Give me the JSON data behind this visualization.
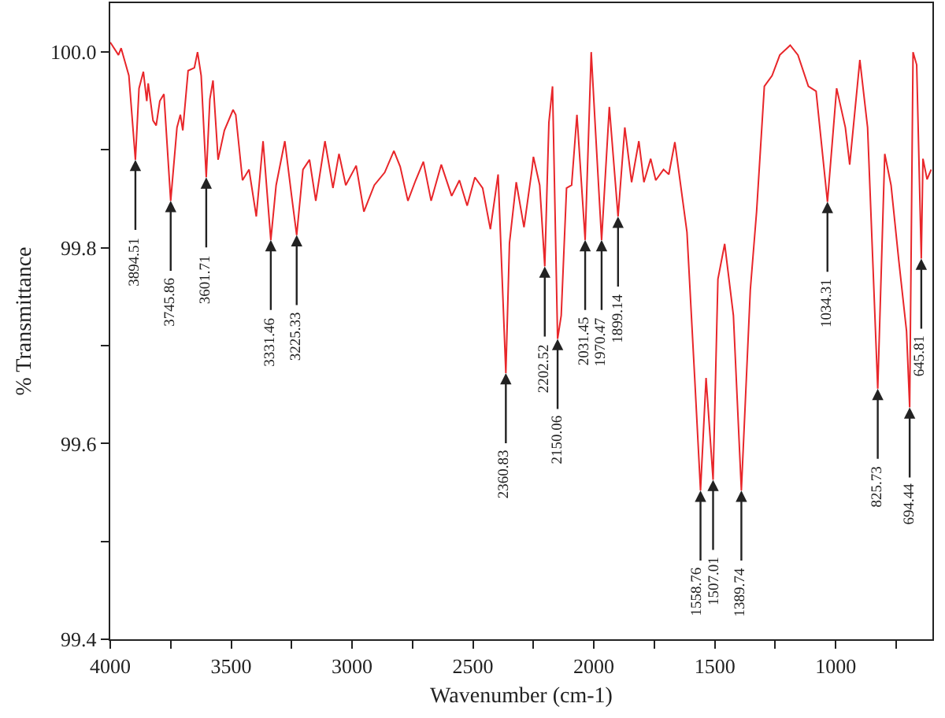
{
  "chart_data": {
    "type": "line",
    "xlabel": "Wavenumber (cm-1)",
    "ylabel": "% Transmittance",
    "xlim": [
      4000,
      600
    ],
    "ylim": [
      99.4,
      100.05
    ],
    "xticks": [
      4000,
      {
        "value": 3750,
        "label": null
      },
      3500,
      {
        "value": 3250,
        "label": null
      },
      3000,
      {
        "value": 2750,
        "label": null
      },
      2500,
      {
        "value": 2250,
        "label": null
      },
      2000,
      {
        "value": 1750,
        "label": null
      },
      1500,
      {
        "value": 1250,
        "label": null
      },
      1000,
      {
        "value": 750,
        "label": null
      }
    ],
    "yticks": [
      99.4,
      {
        "value": 99.5,
        "label": null
      },
      99.6,
      {
        "value": 99.7,
        "label": null
      },
      99.8,
      {
        "value": 99.9,
        "label": null
      },
      {
        "value": 100.0,
        "label": "100.0"
      }
    ],
    "marker": "none",
    "line_style": "solid",
    "series": [
      {
        "color": "#e8262a",
        "x": [
          4000,
          3966,
          3955,
          3923,
          3896,
          3881,
          3863,
          3849,
          3843,
          3823,
          3810,
          3795,
          3778,
          3750,
          3724,
          3710,
          3700,
          3678,
          3652,
          3639,
          3624,
          3603,
          3588,
          3575,
          3554,
          3528,
          3492,
          3481,
          3453,
          3426,
          3396,
          3368,
          3336,
          3314,
          3278,
          3250,
          3229,
          3203,
          3176,
          3150,
          3112,
          3079,
          3054,
          3026,
          2983,
          2951,
          2908,
          2865,
          2827,
          2801,
          2769,
          2737,
          2705,
          2673,
          2631,
          2588,
          2556,
          2524,
          2492,
          2460,
          2428,
          2396,
          2364,
          2349,
          2321,
          2289,
          2256,
          2250,
          2224,
          2203,
          2186,
          2171,
          2150,
          2135,
          2113,
          2092,
          2070,
          2036,
          2011,
          1994,
          1968,
          1936,
          1900,
          1872,
          1844,
          1814,
          1793,
          1765,
          1744,
          1712,
          1690,
          1665,
          1615,
          1583,
          1559,
          1536,
          1507,
          1487,
          1459,
          1423,
          1390,
          1353,
          1327,
          1295,
          1263,
          1231,
          1188,
          1156,
          1113,
          1081,
          1034,
          996,
          960,
          942,
          900,
          868,
          826,
          797,
          771,
          739,
          707,
          694,
          680,
          665,
          646,
          639,
          622,
          605
        ],
        "values": [
          100.01,
          99.997,
          100.004,
          99.976,
          99.89,
          99.963,
          99.98,
          99.95,
          99.968,
          99.93,
          99.925,
          99.95,
          99.957,
          99.848,
          99.923,
          99.936,
          99.92,
          99.981,
          99.984,
          100.0,
          99.976,
          99.872,
          99.952,
          99.971,
          99.89,
          99.92,
          99.941,
          99.936,
          99.869,
          99.88,
          99.832,
          99.909,
          99.808,
          99.864,
          99.909,
          99.853,
          99.813,
          99.88,
          99.89,
          99.848,
          99.909,
          99.861,
          99.896,
          99.864,
          99.884,
          99.837,
          99.864,
          99.877,
          99.899,
          99.883,
          99.848,
          99.869,
          99.888,
          99.848,
          99.885,
          99.853,
          99.869,
          99.843,
          99.872,
          99.861,
          99.819,
          99.875,
          99.672,
          99.805,
          99.867,
          99.821,
          99.88,
          99.893,
          99.864,
          99.781,
          99.928,
          99.965,
          99.707,
          99.731,
          99.861,
          99.864,
          99.936,
          99.808,
          100.0,
          99.923,
          99.808,
          99.944,
          99.832,
          99.923,
          99.867,
          99.909,
          99.867,
          99.891,
          99.869,
          99.88,
          99.875,
          99.908,
          99.816,
          99.667,
          99.552,
          99.667,
          99.563,
          99.768,
          99.804,
          99.731,
          99.552,
          99.757,
          99.837,
          99.965,
          99.976,
          99.997,
          100.007,
          99.997,
          99.965,
          99.96,
          99.847,
          99.963,
          99.923,
          99.885,
          99.992,
          99.923,
          99.656,
          99.896,
          99.864,
          99.787,
          99.715,
          99.637,
          100.0,
          99.987,
          99.789,
          99.891,
          99.87,
          99.88
        ]
      }
    ],
    "annotations": [
      {
        "text": "3894.51",
        "x": 3896,
        "y": 99.89
      },
      {
        "text": "3745.86",
        "x": 3750,
        "y": 99.848
      },
      {
        "text": "3601.71",
        "x": 3603,
        "y": 99.872
      },
      {
        "text": "3331.46",
        "x": 3336,
        "y": 99.808
      },
      {
        "text": "3225.33",
        "x": 3229,
        "y": 99.813
      },
      {
        "text": "2360.83",
        "x": 2364,
        "y": 99.672
      },
      {
        "text": "2202.52",
        "x": 2203,
        "y": 99.781
      },
      {
        "text": "2150.06",
        "x": 2150,
        "y": 99.707
      },
      {
        "text": "2031.45",
        "x": 2036,
        "y": 99.808
      },
      {
        "text": "1970.47",
        "x": 1968,
        "y": 99.808
      },
      {
        "text": "1899.14",
        "x": 1900,
        "y": 99.832
      },
      {
        "text": "1558.76",
        "x": 1559,
        "y": 99.552
      },
      {
        "text": "1507.01",
        "x": 1507,
        "y": 99.563
      },
      {
        "text": "1389.74",
        "x": 1390,
        "y": 99.552
      },
      {
        "text": "1034.31",
        "x": 1034,
        "y": 99.847
      },
      {
        "text": "825.73",
        "x": 826,
        "y": 99.656
      },
      {
        "text": "694.44",
        "x": 694,
        "y": 99.637
      },
      {
        "text": "645.81",
        "x": 646,
        "y": 99.789
      }
    ]
  }
}
